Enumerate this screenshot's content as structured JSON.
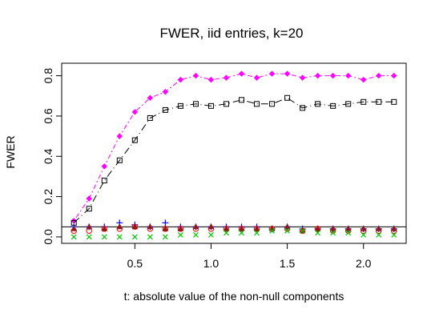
{
  "chart_data": {
    "type": "scatter",
    "title": "FWER, iid entries, k=20",
    "xlabel": "t: absolute value of the non-null components",
    "ylabel": "FWER",
    "xlim": [
      0.02,
      2.28
    ],
    "ylim": [
      -0.032,
      0.862
    ],
    "xticks": [
      0.5,
      1.0,
      1.5,
      2.0
    ],
    "xtick_labels": [
      "0.5",
      "1.0",
      "1.5",
      "2.0"
    ],
    "yticks": [
      0.0,
      0.2,
      0.4,
      0.6,
      0.8
    ],
    "ytick_labels": [
      "0.0",
      "0.2",
      "0.4",
      "0.6",
      "0.8"
    ],
    "grid": false,
    "reference_line": 0.05,
    "x": [
      0.1,
      0.2,
      0.3,
      0.4,
      0.5,
      0.6,
      0.7,
      0.8,
      0.9,
      1.0,
      1.1,
      1.2,
      1.3,
      1.4,
      1.5,
      1.6,
      1.7,
      1.8,
      1.9,
      2.0,
      2.1,
      2.2
    ],
    "series": [
      {
        "color": "#ff00ff",
        "marker": "diamond",
        "line": "dotdash",
        "values": [
          0.08,
          0.19,
          0.35,
          0.5,
          0.62,
          0.69,
          0.72,
          0.78,
          0.8,
          0.78,
          0.79,
          0.81,
          0.79,
          0.81,
          0.81,
          0.79,
          0.8,
          0.8,
          0.8,
          0.78,
          0.8,
          0.8
        ]
      },
      {
        "color": "#000000",
        "marker": "square",
        "line": "longdash-dot",
        "values": [
          0.07,
          0.14,
          0.28,
          0.38,
          0.48,
          0.59,
          0.63,
          0.65,
          0.66,
          0.65,
          0.66,
          0.68,
          0.66,
          0.66,
          0.69,
          0.64,
          0.66,
          0.65,
          0.66,
          0.67,
          0.67,
          0.67
        ]
      },
      {
        "color": "#0000ff",
        "marker": "plus",
        "values": [
          0.05,
          0.05,
          0.05,
          0.07,
          0.06,
          0.05,
          0.07,
          0.05,
          0.05,
          0.05,
          0.05,
          0.05,
          0.05,
          0.04,
          0.05,
          0.04,
          0.04,
          0.04,
          0.04,
          0.04,
          0.04,
          0.04
        ]
      },
      {
        "color": "#ff0000",
        "marker": "circle",
        "values": [
          0.03,
          0.03,
          0.04,
          0.04,
          0.05,
          0.04,
          0.04,
          0.04,
          0.04,
          0.04,
          0.04,
          0.04,
          0.04,
          0.04,
          0.04,
          0.03,
          0.04,
          0.03,
          0.03,
          0.03,
          0.03,
          0.03
        ]
      },
      {
        "color": "#8b1a1a",
        "marker": "triangle",
        "values": [
          0.04,
          0.05,
          0.04,
          0.05,
          0.05,
          0.05,
          0.04,
          0.04,
          0.05,
          0.05,
          0.04,
          0.04,
          0.04,
          0.04,
          0.05,
          0.03,
          0.04,
          0.04,
          0.04,
          0.04,
          0.04,
          0.04
        ]
      },
      {
        "color": "#00cc00",
        "marker": "x",
        "values": [
          0.0,
          0.0,
          0.0,
          0.0,
          0.0,
          0.0,
          0.0,
          0.01,
          0.01,
          0.01,
          0.02,
          0.02,
          0.02,
          0.03,
          0.03,
          0.03,
          0.02,
          0.02,
          0.02,
          0.01,
          0.01,
          0.01
        ]
      }
    ]
  }
}
